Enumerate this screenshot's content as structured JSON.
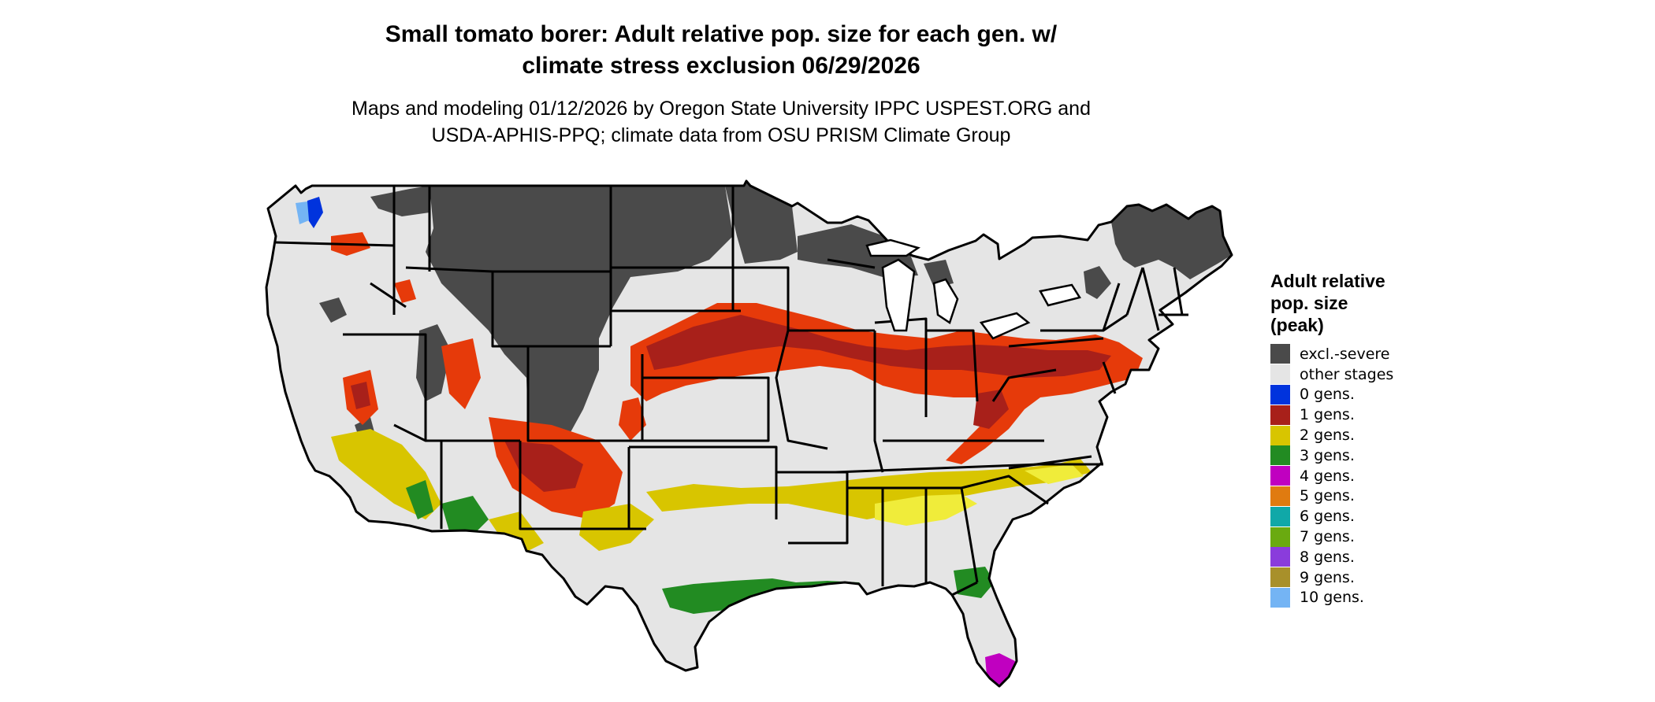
{
  "title": [
    "Small tomato borer: Adult relative pop. size for each gen. w/",
    "climate stress exclusion 06/29/2026"
  ],
  "subtitle": [
    "Maps and modeling 01/12/2026 by Oregon State University IPPC USPEST.ORG and",
    "USDA-APHIS-PPQ; climate data from OSU PRISM Climate Group"
  ],
  "legend": {
    "title": [
      "Adult relative",
      "pop. size",
      "(peak)"
    ],
    "items": [
      {
        "label": "excl.-severe",
        "color": "#4a4a4a"
      },
      {
        "label": "other stages",
        "color": "#e5e5e5"
      },
      {
        "label": "0 gens.",
        "color": "#0033dd"
      },
      {
        "label": "1 gens.",
        "color": "#a8201a"
      },
      {
        "label": "2 gens.",
        "color": "#d8c500"
      },
      {
        "label": "3 gens.",
        "color": "#228b22"
      },
      {
        "label": "4 gens.",
        "color": "#c000c0"
      },
      {
        "label": "5 gens.",
        "color": "#e07b10"
      },
      {
        "label": "6 gens.",
        "color": "#10a8a8"
      },
      {
        "label": "7 gens.",
        "color": "#6aaa10"
      },
      {
        "label": "8 gens.",
        "color": "#8a3cdc"
      },
      {
        "label": "9 gens.",
        "color": "#a8902a"
      },
      {
        "label": "10 gens.",
        "color": "#74b4f4"
      }
    ]
  },
  "colors": {
    "background": "#ffffff",
    "land": "#e5e5e5",
    "excluded": "#4a4a4a",
    "gen1_dark": "#a8201a",
    "gen1_bright": "#e63a0a",
    "gen2": "#d8c500",
    "gen2_light": "#f0ec3a",
    "gen3": "#228b22",
    "gen4": "#c000c0",
    "gen0": "#0033dd",
    "gen10": "#74b4f4",
    "border": "#000000"
  }
}
